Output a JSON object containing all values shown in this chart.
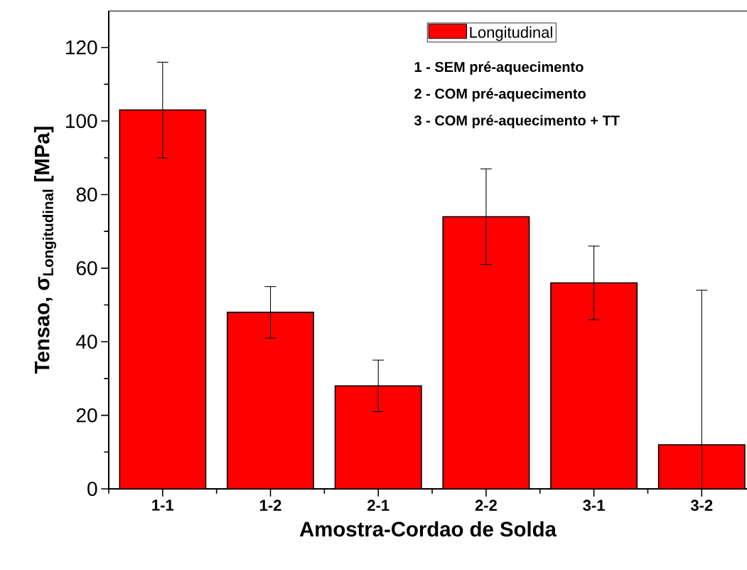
{
  "chart_data": {
    "type": "bar",
    "xlabel": "Amostra-Cordao de Solda",
    "ylabel": "\\textbf{Tensao, σ}_{\\textbf{Longitudinal}}\\textbf{ [MPa]}",
    "categories": [
      "1-1",
      "1-2",
      "2-1",
      "2-2",
      "3-1",
      "3-2"
    ],
    "series": [
      {
        "name": "Longitudinal",
        "color": "#ff0000",
        "values": [
          103,
          48,
          28,
          74,
          56,
          12
        ],
        "errors": [
          [
            90,
            116
          ],
          [
            41,
            55
          ],
          [
            21,
            35
          ],
          [
            61,
            87
          ],
          [
            46,
            66
          ],
          [
            0,
            54
          ]
        ]
      }
    ],
    "ylim": [
      0,
      130
    ],
    "yticks": [
      0,
      20,
      40,
      60,
      80,
      100,
      120
    ],
    "legend": "top",
    "annotations": [
      "1 - SEM pré-aquecimento",
      "2 - COM pré-aquecimento",
      "3 - COM pré-aquecimento + TT"
    ]
  }
}
